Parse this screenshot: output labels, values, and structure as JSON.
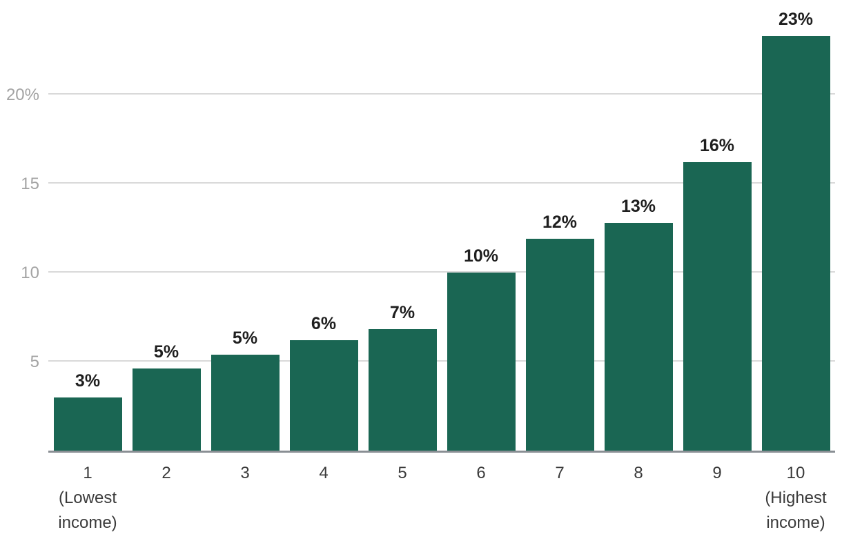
{
  "colors": {
    "background": "#ffffff",
    "bar": "#1a6653",
    "gridline": "#d9d9d9",
    "axis_line": "#8a8f94",
    "y_tick_label": "#a3a3a3",
    "x_tick_label": "#3b3b3b",
    "value_label": "#1f1f1f"
  },
  "chart_data": {
    "type": "bar",
    "title": "",
    "xlabel": "",
    "ylabel": "",
    "categories": [
      "1",
      "2",
      "3",
      "4",
      "5",
      "6",
      "7",
      "8",
      "9",
      "10"
    ],
    "category_sublabels": [
      "(Lowest income)",
      "",
      "",
      "",
      "",
      "",
      "",
      "",
      "",
      "(Highest income)"
    ],
    "values": [
      3,
      5,
      5,
      6,
      7,
      10,
      12,
      13,
      16,
      23
    ],
    "value_labels": [
      "3%",
      "5%",
      "5%",
      "6%",
      "7%",
      "10%",
      "12%",
      "13%",
      "16%",
      "23%"
    ],
    "bar_heights_pct_estimated": [
      3.0,
      4.6,
      5.4,
      6.2,
      6.8,
      10.0,
      11.9,
      12.8,
      16.2,
      23.3
    ],
    "y_ticks": [
      {
        "value": 5,
        "label": "5"
      },
      {
        "value": 10,
        "label": "10"
      },
      {
        "value": 15,
        "label": "15"
      },
      {
        "value": 20,
        "label": "20%"
      }
    ],
    "ylim": [
      0,
      25.3
    ],
    "grid": true,
    "legend_position": "none",
    "bar_color": "#1a6653"
  }
}
